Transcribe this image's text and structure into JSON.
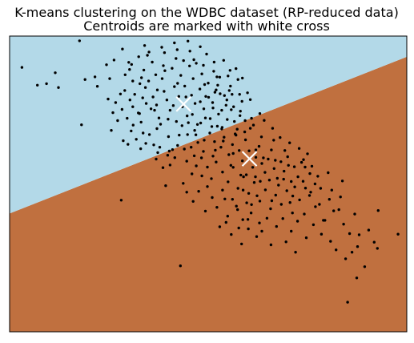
{
  "chart_data": {
    "type": "scatter",
    "title_line1": "K-means clustering on the WDBC dataset (RP-reduced data)",
    "title_line2": "Centroids are marked with white cross",
    "xlabel": "",
    "ylabel": "",
    "xlim": [
      0,
      100
    ],
    "ylim": [
      0,
      100
    ],
    "grid": false,
    "axes_ticks": false,
    "colors": {
      "region_1": "#b3d9e8",
      "region_2": "#c0703f",
      "points": "#000000",
      "centroid": "#ffffff",
      "frame": "#000000"
    },
    "decision_boundary": {
      "x": [
        0,
        100
      ],
      "y": [
        40,
        93
      ]
    },
    "regions": [
      {
        "name": "cluster 1",
        "side": "above boundary",
        "color": "#b3d9e8"
      },
      {
        "name": "cluster 2",
        "side": "below boundary",
        "color": "#c0703f"
      }
    ],
    "centroids": [
      {
        "x": 43.8,
        "y": 77.0
      },
      {
        "x": 60.4,
        "y": 58.5
      }
    ],
    "points": [
      [
        17.6,
        98.4
      ],
      [
        3.1,
        89.4
      ],
      [
        7.0,
        83.4
      ],
      [
        9.3,
        83.9
      ],
      [
        11.5,
        87.6
      ],
      [
        12.3,
        82.6
      ],
      [
        19.0,
        85.3
      ],
      [
        21.5,
        86.2
      ],
      [
        24.4,
        90.3
      ],
      [
        26.3,
        91.9
      ],
      [
        28.4,
        95.6
      ],
      [
        30.0,
        91.1
      ],
      [
        34.0,
        96.8
      ],
      [
        34.7,
        93.5
      ],
      [
        18.1,
        70.0
      ],
      [
        26.7,
        77.5
      ],
      [
        28.3,
        75.2
      ],
      [
        29.6,
        72.2
      ],
      [
        30.3,
        78.4
      ],
      [
        31.5,
        80.3
      ],
      [
        32.4,
        74.0
      ],
      [
        33.1,
        70.9
      ],
      [
        34.2,
        82.6
      ],
      [
        35.0,
        84.8
      ],
      [
        36.1,
        79.4
      ],
      [
        37.0,
        76.7
      ],
      [
        37.6,
        72.3
      ],
      [
        38.4,
        85.6
      ],
      [
        38.9,
        81.3
      ],
      [
        39.6,
        78.4
      ],
      [
        40.4,
        74.9
      ],
      [
        40.9,
        89.1
      ],
      [
        41.5,
        82.9
      ],
      [
        42.0,
        71.1
      ],
      [
        42.6,
        79.6
      ],
      [
        43.1,
        86.7
      ],
      [
        43.5,
        76.1
      ],
      [
        44.1,
        83.1
      ],
      [
        44.7,
        73.0
      ],
      [
        45.3,
        89.9
      ],
      [
        45.8,
        80.0
      ],
      [
        46.2,
        85.6
      ],
      [
        46.7,
        77.2
      ],
      [
        47.3,
        70.1
      ],
      [
        47.9,
        82.1
      ],
      [
        48.4,
        87.2
      ],
      [
        48.9,
        75.4
      ],
      [
        49.4,
        79.6
      ],
      [
        50.0,
        84.1
      ],
      [
        50.5,
        72.1
      ],
      [
        51.1,
        77.5
      ],
      [
        51.7,
        81.0
      ],
      [
        52.3,
        69.5
      ],
      [
        52.9,
        86.1
      ],
      [
        53.4,
        74.9
      ],
      [
        54.1,
        79.9
      ],
      [
        54.8,
        71.8
      ],
      [
        55.6,
        83.1
      ],
      [
        56.4,
        76.1
      ],
      [
        57.3,
        68.5
      ],
      [
        31.0,
        84.8
      ],
      [
        33.5,
        79.1
      ],
      [
        35.6,
        75.4
      ],
      [
        36.8,
        86.9
      ],
      [
        38.0,
        70.2
      ],
      [
        39.1,
        88.3
      ],
      [
        41.2,
        76.5
      ],
      [
        42.3,
        84.0
      ],
      [
        44.4,
        79.4
      ],
      [
        46.0,
        73.5
      ],
      [
        47.0,
        90.8
      ],
      [
        49.1,
        83.6
      ],
      [
        51.4,
        88.1
      ],
      [
        53.0,
        80.5
      ],
      [
        55.0,
        86.5
      ],
      [
        29.0,
        81.6
      ],
      [
        33.8,
        88.5
      ],
      [
        37.2,
        81.8
      ],
      [
        39.9,
        71.9
      ],
      [
        43.8,
        91.7
      ],
      [
        45.0,
        70.7
      ],
      [
        48.0,
        77.8
      ],
      [
        50.9,
        69.4
      ],
      [
        52.4,
        83.4
      ],
      [
        54.5,
        76.6
      ],
      [
        56.0,
        80.3
      ],
      [
        58.1,
        74.6
      ],
      [
        59.3,
        71.4
      ],
      [
        57.5,
        85.3
      ],
      [
        30.6,
        67.9
      ],
      [
        50.4,
        67.2
      ],
      [
        51.6,
        64.3
      ],
      [
        53.2,
        62.4
      ],
      [
        54.0,
        65.8
      ],
      [
        55.2,
        59.9
      ],
      [
        56.1,
        63.3
      ],
      [
        57.0,
        66.5
      ],
      [
        57.8,
        61.3
      ],
      [
        58.6,
        57.8
      ],
      [
        59.4,
        64.9
      ],
      [
        60.3,
        61.2
      ],
      [
        61.2,
        55.6
      ],
      [
        62.0,
        59.0
      ],
      [
        62.8,
        62.7
      ],
      [
        63.5,
        56.9
      ],
      [
        64.3,
        53.9
      ],
      [
        65.1,
        58.4
      ],
      [
        65.9,
        61.5
      ],
      [
        66.6,
        55.2
      ],
      [
        67.4,
        51.9
      ],
      [
        68.3,
        57.5
      ],
      [
        69.1,
        54.3
      ],
      [
        70.0,
        59.2
      ],
      [
        70.9,
        50.8
      ],
      [
        71.7,
        55.8
      ],
      [
        72.6,
        52.4
      ],
      [
        73.5,
        57.3
      ],
      [
        74.5,
        48.6
      ],
      [
        75.6,
        53.5
      ],
      [
        76.9,
        50.0
      ],
      [
        52.0,
        57.4
      ],
      [
        53.6,
        54.0
      ],
      [
        55.0,
        50.7
      ],
      [
        56.3,
        55.6
      ],
      [
        57.5,
        48.5
      ],
      [
        58.9,
        52.4
      ],
      [
        60.2,
        46.8
      ],
      [
        61.6,
        50.5
      ],
      [
        63.0,
        44.2
      ],
      [
        64.4,
        48.0
      ],
      [
        65.7,
        41.6
      ],
      [
        67.0,
        46.2
      ],
      [
        68.4,
        43.1
      ],
      [
        69.8,
        47.7
      ],
      [
        71.2,
        40.2
      ],
      [
        47.0,
        56.1
      ],
      [
        48.4,
        52.7
      ],
      [
        49.8,
        49.1
      ],
      [
        51.0,
        45.4
      ],
      [
        52.2,
        42.1
      ],
      [
        53.6,
        47.9
      ],
      [
        54.9,
        39.1
      ],
      [
        56.1,
        44.8
      ],
      [
        57.4,
        41.3
      ],
      [
        58.7,
        37.9
      ],
      [
        59.7,
        43.6
      ],
      [
        60.8,
        40.2
      ],
      [
        62.3,
        46.0
      ],
      [
        62.9,
        36.8
      ],
      [
        44.0,
        61.8
      ],
      [
        73.0,
        44.6
      ],
      [
        74.2,
        39.8
      ],
      [
        75.5,
        46.1
      ],
      [
        77.0,
        42.3
      ],
      [
        78.3,
        48.5
      ],
      [
        79.4,
        37.7
      ],
      [
        80.5,
        44.8
      ],
      [
        81.6,
        40.9
      ],
      [
        83.3,
        45.6
      ],
      [
        84.1,
        36.4
      ],
      [
        85.6,
        33.2
      ],
      [
        86.9,
        39.8
      ],
      [
        87.6,
        28.8
      ],
      [
        89.4,
        22.0
      ],
      [
        90.4,
        34.4
      ],
      [
        91.8,
        30.3
      ],
      [
        92.6,
        28.2
      ],
      [
        92.8,
        41.0
      ],
      [
        97.8,
        33.0
      ],
      [
        78.5,
        33.0
      ],
      [
        72.0,
        26.9
      ],
      [
        85.1,
        10.0
      ],
      [
        87.4,
        18.2
      ],
      [
        88.0,
        32.8
      ],
      [
        63.5,
        34.0
      ],
      [
        60.1,
        34.8
      ],
      [
        43.0,
        22.3
      ],
      [
        28.1,
        44.5
      ],
      [
        39.3,
        49.4
      ],
      [
        40.4,
        56.4
      ],
      [
        48.8,
        61.0
      ],
      [
        53.4,
        68.6
      ],
      [
        47.4,
        64.0
      ],
      [
        56.3,
        60.3
      ],
      [
        60.6,
        68.8
      ],
      [
        63.4,
        65.9
      ],
      [
        66.5,
        64.8
      ],
      [
        69.3,
        61.3
      ],
      [
        75.0,
        60.2
      ],
      [
        34.3,
        63.7
      ],
      [
        37.8,
        62.4
      ],
      [
        41.6,
        58.9
      ],
      [
        45.9,
        53.4
      ],
      [
        50.8,
        51.8
      ],
      [
        54.5,
        37.0
      ],
      [
        62.0,
        61.5
      ],
      [
        57.1,
        42.5
      ],
      [
        59.6,
        53.1
      ],
      [
        67.7,
        49.6
      ],
      [
        71.8,
        49.0
      ],
      [
        74.4,
        55.7
      ],
      [
        64.8,
        38.4
      ],
      [
        46.5,
        59.5
      ],
      [
        51.2,
        59.4
      ],
      [
        68.8,
        38.3
      ],
      [
        79.0,
        37.7
      ],
      [
        82.9,
        41.3
      ],
      [
        58.2,
        53.0
      ],
      [
        61.9,
        52.4
      ],
      [
        63.9,
        58.8
      ],
      [
        55.7,
        56.3
      ],
      [
        49.8,
        55.7
      ],
      [
        66.0,
        44.3
      ],
      [
        69.0,
        51.6
      ],
      [
        70.6,
        43.7
      ],
      [
        72.5,
        37.4
      ],
      [
        76.1,
        56.0
      ],
      [
        80.2,
        53.8
      ],
      [
        65.4,
        51.3
      ],
      [
        58.8,
        47.9
      ],
      [
        54.2,
        44.9
      ],
      [
        60.9,
        43.0
      ],
      [
        47.6,
        47.5
      ],
      [
        43.7,
        50.2
      ],
      [
        38.6,
        55.5
      ],
      [
        35.2,
        66.7
      ],
      [
        32.7,
        73.8
      ],
      [
        31.1,
        69.9
      ],
      [
        36.3,
        63.2
      ],
      [
        40.2,
        61.1
      ],
      [
        42.7,
        66.5
      ],
      [
        46.6,
        68.1
      ],
      [
        49.3,
        72.3
      ],
      [
        52.6,
        73.6
      ],
      [
        55.8,
        75.1
      ],
      [
        58.5,
        77.9
      ],
      [
        60.9,
        72.2
      ],
      [
        59.9,
        80.8
      ],
      [
        57.0,
        89.0
      ],
      [
        53.9,
        91.8
      ],
      [
        49.6,
        93.9
      ],
      [
        45.4,
        94.9
      ],
      [
        41.9,
        92.4
      ],
      [
        38.7,
        90.0
      ],
      [
        35.9,
        91.2
      ],
      [
        33.2,
        85.9
      ],
      [
        31.0,
        76.1
      ],
      [
        29.1,
        86.9
      ],
      [
        27.9,
        80.4
      ],
      [
        26.0,
        74.1
      ],
      [
        24.8,
        78.7
      ],
      [
        22.1,
        83.0
      ],
      [
        25.2,
        85.6
      ],
      [
        28.6,
        64.6
      ],
      [
        31.9,
        65.1
      ],
      [
        44.8,
        66.7
      ],
      [
        48.1,
        70.6
      ],
      [
        51.2,
        75.7
      ],
      [
        53.5,
        69.1
      ],
      [
        56.6,
        71.1
      ],
      [
        59.2,
        67.6
      ],
      [
        61.4,
        69.9
      ],
      [
        63.0,
        73.8
      ],
      [
        58.0,
        73.1
      ],
      [
        55.3,
        81.6
      ],
      [
        52.2,
        86.2
      ],
      [
        48.8,
        90.1
      ],
      [
        46.4,
        92.0
      ],
      [
        42.2,
        95.4
      ],
      [
        39.0,
        94.4
      ],
      [
        36.5,
        74.9
      ],
      [
        34.4,
        77.2
      ],
      [
        32.8,
        83.9
      ],
      [
        30.2,
        88.7
      ],
      [
        27.2,
        71.4
      ],
      [
        25.6,
        68.1
      ],
      [
        29.8,
        63.4
      ],
      [
        33.6,
        67.2
      ],
      [
        37.1,
        68.7
      ],
      [
        40.0,
        66.0
      ],
      [
        43.4,
        69.7
      ],
      [
        46.9,
        66.6
      ],
      [
        50.1,
        79.3
      ],
      [
        52.0,
        81.8
      ],
      [
        54.7,
        78.4
      ],
      [
        57.9,
        80.3
      ],
      [
        60.6,
        78.5
      ],
      [
        56.8,
        66.9
      ],
      [
        53.8,
        64.5
      ],
      [
        51.8,
        61.4
      ],
      [
        49.0,
        64.8
      ],
      [
        45.7,
        62.4
      ],
      [
        42.3,
        63.0
      ],
      [
        39.8,
        59.7
      ],
      [
        36.9,
        58.4
      ],
      [
        66.2,
        68.8
      ],
      [
        68.1,
        65.7
      ],
      [
        70.5,
        63.9
      ],
      [
        72.9,
        62.0
      ],
      [
        64.1,
        71.5
      ],
      [
        58.6,
        85.8
      ],
      [
        55.5,
        88.4
      ],
      [
        51.5,
        91.2
      ],
      [
        48.0,
        96.4
      ],
      [
        44.9,
        98.3
      ],
      [
        41.5,
        97.7
      ],
      [
        38.3,
        96.2
      ],
      [
        35.1,
        94.6
      ],
      [
        32.5,
        93.0
      ],
      [
        30.7,
        90.4
      ],
      [
        33.0,
        61.9
      ],
      [
        37.3,
        60.6
      ],
      [
        41.0,
        61.6
      ],
      [
        44.6,
        57.7
      ],
      [
        48.3,
        58.8
      ],
      [
        60.0,
        38.0
      ],
      [
        57.7,
        35.1
      ],
      [
        55.8,
        32.9
      ],
      [
        52.9,
        35.5
      ],
      [
        49.3,
        40.8
      ],
      [
        46.2,
        44.1
      ],
      [
        44.6,
        47.2
      ],
      [
        67.2,
        35.6
      ],
      [
        70.9,
        34.0
      ],
      [
        74.7,
        31.8
      ],
      [
        76.5,
        36.2
      ],
      [
        80.8,
        30.6
      ],
      [
        82.2,
        27.7
      ],
      [
        84.6,
        24.7
      ],
      [
        86.2,
        26.9
      ],
      [
        69.6,
        30.4
      ],
      [
        65.8,
        29.4
      ],
      [
        62.2,
        32.2
      ],
      [
        58.4,
        29.7
      ],
      [
        71.3,
        45.9
      ],
      [
        73.9,
        50.9
      ],
      [
        75.8,
        47.2
      ],
      [
        78.0,
        43.1
      ],
      [
        81.1,
        47.9
      ],
      [
        83.8,
        51.0
      ],
      [
        77.6,
        52.6
      ],
      [
        74.0,
        58.2
      ],
      [
        70.2,
        56.3
      ],
      [
        66.9,
        58.0
      ],
      [
        63.1,
        50.9
      ]
    ]
  }
}
